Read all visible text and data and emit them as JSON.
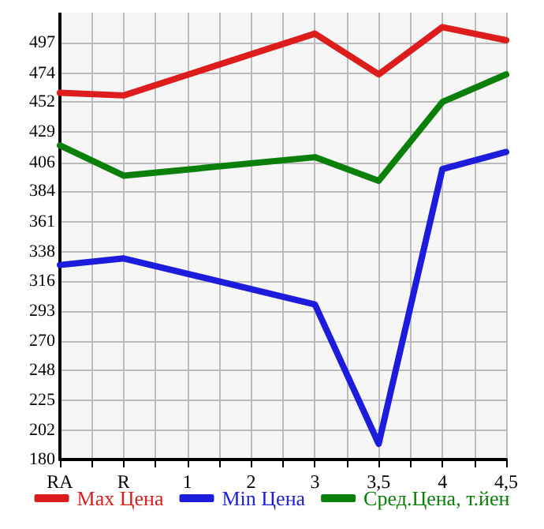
{
  "chart_data": {
    "type": "line",
    "categories": [
      "RA",
      "R",
      "1",
      "2",
      "3",
      "3,5",
      "4",
      "4,5"
    ],
    "series": [
      {
        "name": "Max Цена",
        "color": "#dd1c1c",
        "values": [
          459,
          457,
          null,
          null,
          504,
          473,
          509,
          499
        ]
      },
      {
        "name": "Min Цена",
        "color": "#1c1cdd",
        "values": [
          328,
          333,
          null,
          null,
          298,
          192,
          401,
          414
        ]
      },
      {
        "name": "Сред.Цена, т.йен",
        "color": "#0a800a",
        "values": [
          419,
          396,
          null,
          null,
          410,
          392,
          452,
          473
        ]
      }
    ],
    "ylim": [
      180,
      520
    ],
    "yticks": [
      180,
      202,
      225,
      248,
      270,
      293,
      316,
      338,
      361,
      384,
      406,
      429,
      452,
      474,
      497
    ],
    "grid": true,
    "legend": "bottom",
    "marker": "none",
    "line_style": "solid"
  }
}
